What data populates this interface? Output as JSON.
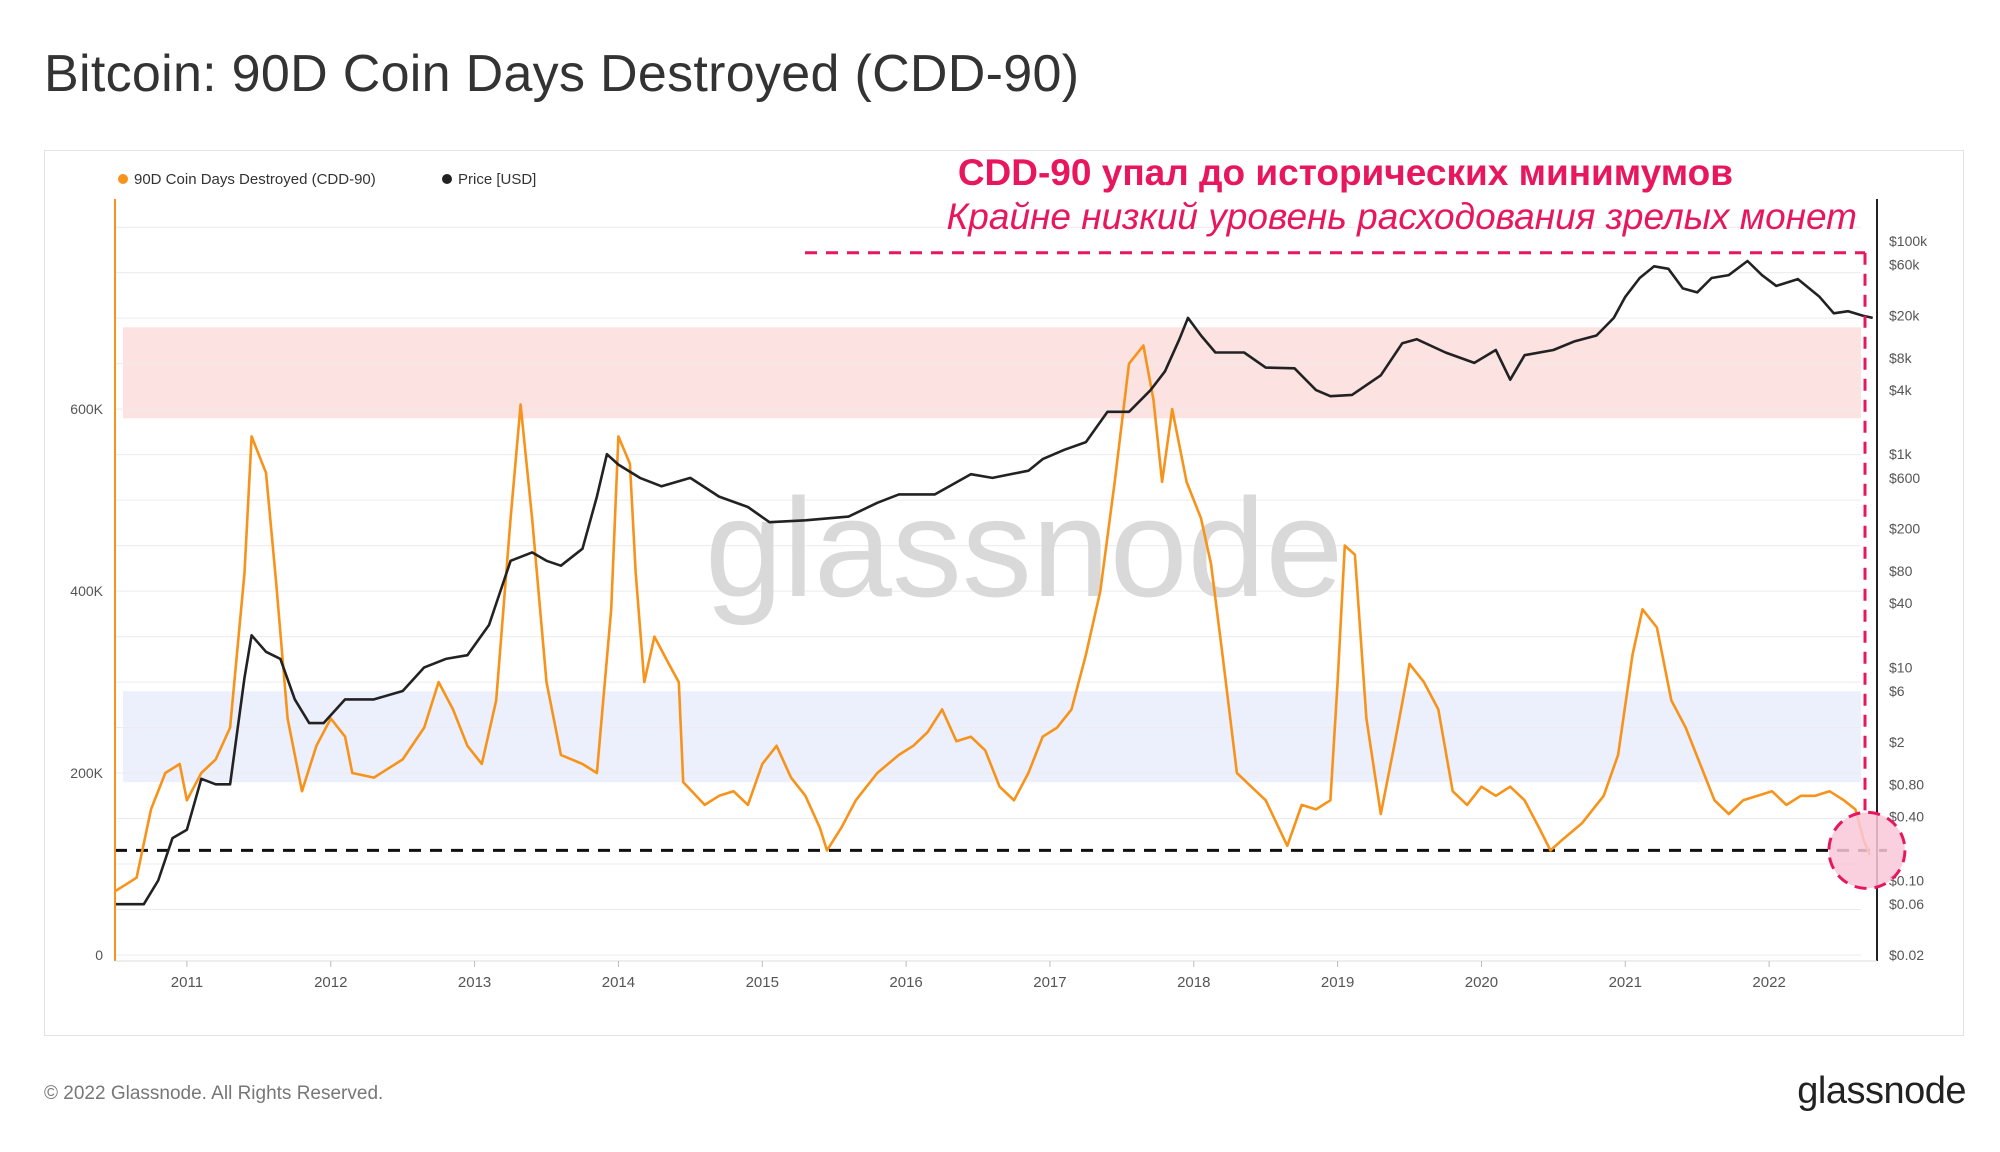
{
  "page": {
    "title": "Bitcoin: 90D Coin Days Destroyed (CDD-90)",
    "copyright": "© 2022 Glassnode. All Rights Reserved.",
    "logo": "glassnode",
    "watermark": "glassnode"
  },
  "annotation": {
    "headline": "CDD-90 упал до исторических минимумов",
    "subline": "Крайне низкий уровень расходования зрелых монет",
    "color": "#e8175d"
  },
  "chart_data": {
    "type": "line",
    "title": "Bitcoin: 90D Coin Days Destroyed (CDD-90)",
    "legend_position": "top-left",
    "x_range": [
      2010.5,
      2022.75
    ],
    "x_ticks": [
      "2011",
      "2012",
      "2013",
      "2014",
      "2015",
      "2016",
      "2017",
      "2018",
      "2019",
      "2020",
      "2021",
      "2022"
    ],
    "y_left": {
      "range": [
        0,
        820000
      ],
      "ticks": [
        0,
        200000,
        400000,
        600000
      ],
      "tick_labels": [
        "0",
        "200K",
        "400K",
        "600K"
      ],
      "color": "#f7931a"
    },
    "y_right": {
      "scale": "log",
      "range": [
        0.02,
        200000
      ],
      "ticks": [
        0.02,
        0.06,
        0.1,
        0.4,
        0.8,
        2,
        6,
        10,
        40,
        80,
        200,
        600,
        1000,
        4000,
        8000,
        20000,
        60000,
        100000
      ],
      "tick_labels": [
        "$0.02",
        "$0.06",
        "$0.10",
        "$0.40",
        "$0.80",
        "$2",
        "$6",
        "$10",
        "$40",
        "$80",
        "$200",
        "$600",
        "$1k",
        "$4k",
        "$8k",
        "$20k",
        "$60k",
        "$100k"
      ],
      "color": "#222222"
    },
    "bands": [
      {
        "name": "high-band",
        "range": [
          590000,
          690000
        ],
        "color": "#fde2e2"
      },
      {
        "name": "low-band",
        "range": [
          190000,
          290000
        ],
        "color": "#eceffc"
      }
    ],
    "reference_line": {
      "value": 115000,
      "style": "dashed",
      "color": "#111111"
    },
    "highlight": {
      "year": 2022.68,
      "value": 115000,
      "color": "#e8175d"
    },
    "series": [
      {
        "name": "90D Coin Days Destroyed (CDD-90)",
        "axis": "left",
        "color": "#f7931a",
        "points": [
          [
            2010.5,
            70000
          ],
          [
            2010.65,
            85000
          ],
          [
            2010.75,
            160000
          ],
          [
            2010.85,
            200000
          ],
          [
            2010.95,
            210000
          ],
          [
            2011.0,
            170000
          ],
          [
            2011.1,
            200000
          ],
          [
            2011.2,
            215000
          ],
          [
            2011.3,
            250000
          ],
          [
            2011.4,
            420000
          ],
          [
            2011.45,
            570000
          ],
          [
            2011.55,
            530000
          ],
          [
            2011.62,
            410000
          ],
          [
            2011.7,
            260000
          ],
          [
            2011.8,
            180000
          ],
          [
            2011.9,
            230000
          ],
          [
            2012.0,
            260000
          ],
          [
            2012.1,
            240000
          ],
          [
            2012.15,
            200000
          ],
          [
            2012.3,
            195000
          ],
          [
            2012.5,
            215000
          ],
          [
            2012.65,
            250000
          ],
          [
            2012.75,
            300000
          ],
          [
            2012.85,
            270000
          ],
          [
            2012.95,
            230000
          ],
          [
            2013.05,
            210000
          ],
          [
            2013.15,
            280000
          ],
          [
            2013.25,
            480000
          ],
          [
            2013.32,
            605000
          ],
          [
            2013.4,
            480000
          ],
          [
            2013.5,
            300000
          ],
          [
            2013.6,
            220000
          ],
          [
            2013.75,
            210000
          ],
          [
            2013.85,
            200000
          ],
          [
            2013.95,
            380000
          ],
          [
            2014.0,
            570000
          ],
          [
            2014.08,
            540000
          ],
          [
            2014.12,
            420000
          ],
          [
            2014.18,
            300000
          ],
          [
            2014.25,
            350000
          ],
          [
            2014.35,
            320000
          ],
          [
            2014.42,
            300000
          ],
          [
            2014.45,
            190000
          ],
          [
            2014.6,
            165000
          ],
          [
            2014.7,
            175000
          ],
          [
            2014.8,
            180000
          ],
          [
            2014.9,
            165000
          ],
          [
            2015.0,
            210000
          ],
          [
            2015.1,
            230000
          ],
          [
            2015.2,
            195000
          ],
          [
            2015.3,
            175000
          ],
          [
            2015.4,
            140000
          ],
          [
            2015.45,
            115000
          ],
          [
            2015.55,
            140000
          ],
          [
            2015.65,
            170000
          ],
          [
            2015.8,
            200000
          ],
          [
            2015.95,
            220000
          ],
          [
            2016.05,
            230000
          ],
          [
            2016.15,
            245000
          ],
          [
            2016.25,
            270000
          ],
          [
            2016.35,
            235000
          ],
          [
            2016.45,
            240000
          ],
          [
            2016.55,
            225000
          ],
          [
            2016.65,
            185000
          ],
          [
            2016.75,
            170000
          ],
          [
            2016.85,
            200000
          ],
          [
            2016.95,
            240000
          ],
          [
            2017.05,
            250000
          ],
          [
            2017.15,
            270000
          ],
          [
            2017.25,
            330000
          ],
          [
            2017.35,
            400000
          ],
          [
            2017.45,
            520000
          ],
          [
            2017.55,
            650000
          ],
          [
            2017.65,
            670000
          ],
          [
            2017.72,
            610000
          ],
          [
            2017.78,
            520000
          ],
          [
            2017.85,
            600000
          ],
          [
            2017.95,
            520000
          ],
          [
            2018.05,
            480000
          ],
          [
            2018.12,
            430000
          ],
          [
            2018.2,
            330000
          ],
          [
            2018.3,
            200000
          ],
          [
            2018.4,
            185000
          ],
          [
            2018.5,
            170000
          ],
          [
            2018.65,
            120000
          ],
          [
            2018.75,
            165000
          ],
          [
            2018.85,
            160000
          ],
          [
            2018.95,
            170000
          ],
          [
            2019.0,
            300000
          ],
          [
            2019.05,
            450000
          ],
          [
            2019.12,
            440000
          ],
          [
            2019.2,
            260000
          ],
          [
            2019.3,
            155000
          ],
          [
            2019.4,
            235000
          ],
          [
            2019.5,
            320000
          ],
          [
            2019.6,
            300000
          ],
          [
            2019.7,
            270000
          ],
          [
            2019.8,
            180000
          ],
          [
            2019.9,
            165000
          ],
          [
            2020.0,
            185000
          ],
          [
            2020.1,
            175000
          ],
          [
            2020.2,
            185000
          ],
          [
            2020.3,
            170000
          ],
          [
            2020.4,
            140000
          ],
          [
            2020.48,
            115000
          ],
          [
            2020.55,
            125000
          ],
          [
            2020.7,
            145000
          ],
          [
            2020.85,
            175000
          ],
          [
            2020.95,
            220000
          ],
          [
            2021.05,
            330000
          ],
          [
            2021.12,
            380000
          ],
          [
            2021.22,
            360000
          ],
          [
            2021.32,
            280000
          ],
          [
            2021.42,
            250000
          ],
          [
            2021.52,
            210000
          ],
          [
            2021.62,
            170000
          ],
          [
            2021.72,
            155000
          ],
          [
            2021.82,
            170000
          ],
          [
            2021.92,
            175000
          ],
          [
            2022.02,
            180000
          ],
          [
            2022.12,
            165000
          ],
          [
            2022.22,
            175000
          ],
          [
            2022.32,
            175000
          ],
          [
            2022.42,
            180000
          ],
          [
            2022.52,
            170000
          ],
          [
            2022.6,
            160000
          ],
          [
            2022.66,
            125000
          ],
          [
            2022.7,
            110000
          ]
        ]
      },
      {
        "name": "Price [USD]",
        "axis": "right",
        "color": "#222222",
        "points": [
          [
            2010.5,
            0.06
          ],
          [
            2010.6,
            0.06
          ],
          [
            2010.7,
            0.06
          ],
          [
            2010.8,
            0.1
          ],
          [
            2010.9,
            0.25
          ],
          [
            2011.0,
            0.3
          ],
          [
            2011.1,
            0.9
          ],
          [
            2011.2,
            0.8
          ],
          [
            2011.3,
            0.8
          ],
          [
            2011.4,
            8
          ],
          [
            2011.45,
            20
          ],
          [
            2011.55,
            14
          ],
          [
            2011.65,
            12
          ],
          [
            2011.75,
            5
          ],
          [
            2011.85,
            3
          ],
          [
            2011.95,
            3
          ],
          [
            2012.1,
            5
          ],
          [
            2012.3,
            5
          ],
          [
            2012.5,
            6
          ],
          [
            2012.65,
            10
          ],
          [
            2012.8,
            12
          ],
          [
            2012.95,
            13
          ],
          [
            2013.1,
            25
          ],
          [
            2013.25,
            100
          ],
          [
            2013.4,
            120
          ],
          [
            2013.5,
            100
          ],
          [
            2013.6,
            90
          ],
          [
            2013.75,
            130
          ],
          [
            2013.85,
            400
          ],
          [
            2013.92,
            1000
          ],
          [
            2014.0,
            800
          ],
          [
            2014.15,
            600
          ],
          [
            2014.3,
            500
          ],
          [
            2014.5,
            600
          ],
          [
            2014.7,
            400
          ],
          [
            2014.9,
            320
          ],
          [
            2015.05,
            230
          ],
          [
            2015.3,
            240
          ],
          [
            2015.6,
            260
          ],
          [
            2015.8,
            350
          ],
          [
            2015.95,
            420
          ],
          [
            2016.2,
            420
          ],
          [
            2016.45,
            650
          ],
          [
            2016.6,
            600
          ],
          [
            2016.85,
            700
          ],
          [
            2016.95,
            900
          ],
          [
            2017.1,
            1100
          ],
          [
            2017.25,
            1300
          ],
          [
            2017.4,
            2500
          ],
          [
            2017.55,
            2500
          ],
          [
            2017.7,
            4000
          ],
          [
            2017.8,
            6000
          ],
          [
            2017.9,
            12000
          ],
          [
            2017.96,
            19000
          ],
          [
            2018.05,
            13000
          ],
          [
            2018.15,
            9000
          ],
          [
            2018.35,
            9000
          ],
          [
            2018.5,
            6500
          ],
          [
            2018.7,
            6400
          ],
          [
            2018.85,
            4000
          ],
          [
            2018.95,
            3500
          ],
          [
            2019.1,
            3600
          ],
          [
            2019.3,
            5500
          ],
          [
            2019.45,
            11000
          ],
          [
            2019.55,
            12000
          ],
          [
            2019.75,
            9000
          ],
          [
            2019.95,
            7200
          ],
          [
            2020.1,
            9500
          ],
          [
            2020.2,
            5000
          ],
          [
            2020.3,
            8500
          ],
          [
            2020.5,
            9500
          ],
          [
            2020.65,
            11500
          ],
          [
            2020.8,
            13000
          ],
          [
            2020.92,
            19000
          ],
          [
            2021.0,
            30000
          ],
          [
            2021.1,
            45000
          ],
          [
            2021.2,
            58000
          ],
          [
            2021.3,
            55000
          ],
          [
            2021.4,
            36000
          ],
          [
            2021.5,
            33000
          ],
          [
            2021.6,
            45000
          ],
          [
            2021.72,
            48000
          ],
          [
            2021.85,
            65000
          ],
          [
            2021.95,
            48000
          ],
          [
            2022.05,
            38000
          ],
          [
            2022.2,
            44000
          ],
          [
            2022.35,
            30000
          ],
          [
            2022.45,
            21000
          ],
          [
            2022.55,
            22000
          ],
          [
            2022.65,
            20000
          ],
          [
            2022.72,
            19000
          ]
        ]
      }
    ]
  }
}
